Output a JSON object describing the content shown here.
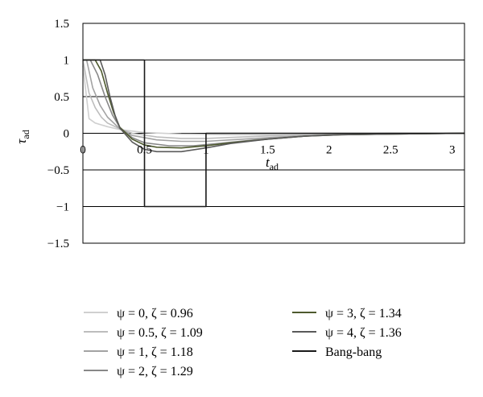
{
  "chart_data": {
    "type": "line",
    "xlabel_main": "t",
    "xlabel_sub": "ad",
    "ylabel_main": "τ",
    "ylabel_sub": "ad",
    "xlim": [
      0,
      3.1
    ],
    "ylim": [
      -1.5,
      1.5
    ],
    "grid": "horizontal",
    "legend_position": "bottom",
    "x_ticks": [
      "0",
      "0.5",
      "1",
      "1.5",
      "2",
      "2.5",
      "3"
    ],
    "x_tick_values": [
      0,
      0.5,
      1,
      1.5,
      2,
      2.5,
      3
    ],
    "y_ticks": [
      "1.5",
      "1",
      "0.5",
      "0",
      "−0.5",
      "−1",
      "−1.5"
    ],
    "y_tick_values": [
      1.5,
      1,
      0.5,
      0,
      -0.5,
      -1,
      -1.5
    ],
    "series": [
      {
        "name": "ψ = 0, ζ = 0.96",
        "color": "#d0d0d0",
        "x": [
          0,
          0.05,
          0.1,
          0.2,
          0.3,
          0.5,
          0.8,
          1.2,
          1.6,
          2.0,
          2.5,
          3.1
        ],
        "y": [
          0.92,
          0.2,
          0.14,
          0.09,
          0.05,
          0.01,
          -0.01,
          -0.02,
          -0.02,
          -0.01,
          0,
          0
        ]
      },
      {
        "name": "ψ = 0.5, ζ = 1.09",
        "color": "#bdbdbd",
        "x": [
          0,
          0.05,
          0.1,
          0.15,
          0.2,
          0.3,
          0.4,
          0.6,
          0.8,
          1.0,
          1.3,
          1.6,
          2.0,
          2.5,
          3.1
        ],
        "y": [
          1.0,
          0.55,
          0.35,
          0.22,
          0.14,
          0.06,
          0.0,
          -0.05,
          -0.07,
          -0.07,
          -0.05,
          -0.03,
          -0.01,
          0,
          0
        ]
      },
      {
        "name": "ψ = 1, ζ = 1.18",
        "color": "#a3a3a3",
        "x": [
          0,
          0.03,
          0.08,
          0.14,
          0.2,
          0.3,
          0.4,
          0.6,
          0.8,
          1.0,
          1.3,
          1.6,
          2.0,
          2.5,
          3.1
        ],
        "y": [
          1.0,
          1.0,
          0.62,
          0.38,
          0.22,
          0.06,
          -0.03,
          -0.09,
          -0.11,
          -0.11,
          -0.08,
          -0.05,
          -0.02,
          -0.01,
          0
        ]
      },
      {
        "name": "ψ = 2, ζ = 1.29",
        "color": "#888888",
        "x": [
          0,
          0.06,
          0.12,
          0.18,
          0.24,
          0.3,
          0.4,
          0.5,
          0.7,
          0.9,
          1.1,
          1.4,
          1.7,
          2.0,
          2.5,
          3.1
        ],
        "y": [
          1.0,
          1.0,
          0.8,
          0.5,
          0.25,
          0.08,
          -0.06,
          -0.13,
          -0.17,
          -0.17,
          -0.14,
          -0.09,
          -0.05,
          -0.02,
          -0.01,
          0
        ]
      },
      {
        "name": "ψ = 3, ζ = 1.34",
        "color": "#4e5a2e",
        "x": [
          0,
          0.1,
          0.15,
          0.2,
          0.25,
          0.3,
          0.4,
          0.5,
          0.6,
          0.8,
          1.0,
          1.2,
          1.5,
          1.8,
          2.1,
          2.5,
          3.1
        ],
        "y": [
          1.0,
          1.0,
          0.85,
          0.55,
          0.28,
          0.08,
          -0.08,
          -0.16,
          -0.19,
          -0.2,
          -0.17,
          -0.13,
          -0.08,
          -0.04,
          -0.02,
          -0.01,
          0
        ]
      },
      {
        "name": "ψ = 4, ζ = 1.36",
        "color": "#5a5a5a",
        "x": [
          0,
          0.14,
          0.18,
          0.22,
          0.26,
          0.3,
          0.4,
          0.5,
          0.6,
          0.8,
          1.0,
          1.2,
          1.5,
          1.8,
          2.1,
          2.5,
          3.1
        ],
        "y": [
          1.0,
          1.0,
          0.8,
          0.5,
          0.25,
          0.07,
          -0.12,
          -0.22,
          -0.25,
          -0.25,
          -0.2,
          -0.14,
          -0.08,
          -0.04,
          -0.02,
          -0.01,
          0
        ]
      },
      {
        "name": "Bang-bang",
        "color": "#1a1a1a",
        "x": [
          0,
          0.5,
          0.5,
          1.0,
          1.0,
          3.1
        ],
        "y": [
          1,
          1,
          -1,
          -1,
          0,
          0
        ]
      }
    ]
  }
}
